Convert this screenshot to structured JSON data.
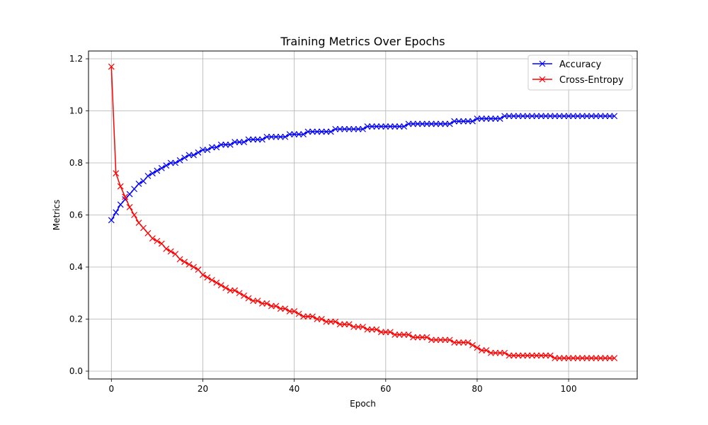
{
  "chart_data": {
    "type": "line",
    "title": "Training Metrics Over Epochs",
    "xlabel": "Epoch",
    "ylabel": "Metrics",
    "xlim": [
      -5,
      115
    ],
    "ylim": [
      -0.03,
      1.23
    ],
    "xticks": [
      0,
      20,
      40,
      60,
      80,
      100
    ],
    "yticks": [
      0.0,
      0.2,
      0.4,
      0.6,
      0.8,
      1.0,
      1.2
    ],
    "xtick_labels": [
      "0",
      "20",
      "40",
      "60",
      "80",
      "100"
    ],
    "ytick_labels": [
      "0.0",
      "0.2",
      "0.4",
      "0.6",
      "0.8",
      "1.0",
      "1.2"
    ],
    "grid": true,
    "legend_position": "top-right",
    "marker": "x",
    "x": [
      0,
      1,
      2,
      3,
      4,
      5,
      6,
      7,
      8,
      9,
      10,
      11,
      12,
      13,
      14,
      15,
      16,
      17,
      18,
      19,
      20,
      21,
      22,
      23,
      24,
      25,
      26,
      27,
      28,
      29,
      30,
      31,
      32,
      33,
      34,
      35,
      36,
      37,
      38,
      39,
      40,
      41,
      42,
      43,
      44,
      45,
      46,
      47,
      48,
      49,
      50,
      51,
      52,
      53,
      54,
      55,
      56,
      57,
      58,
      59,
      60,
      61,
      62,
      63,
      64,
      65,
      66,
      67,
      68,
      69,
      70,
      71,
      72,
      73,
      74,
      75,
      76,
      77,
      78,
      79,
      80,
      81,
      82,
      83,
      84,
      85,
      86,
      87,
      88,
      89,
      90,
      91,
      92,
      93,
      94,
      95,
      96,
      97,
      98,
      99,
      100,
      101,
      102,
      103,
      104,
      105,
      106,
      107,
      108,
      109,
      110
    ],
    "series": [
      {
        "name": "Accuracy",
        "color": "#0000ff",
        "values": [
          0.58,
          0.61,
          0.64,
          0.66,
          0.68,
          0.7,
          0.72,
          0.73,
          0.75,
          0.76,
          0.77,
          0.78,
          0.79,
          0.8,
          0.8,
          0.81,
          0.82,
          0.83,
          0.83,
          0.84,
          0.85,
          0.85,
          0.86,
          0.86,
          0.87,
          0.87,
          0.87,
          0.88,
          0.88,
          0.88,
          0.89,
          0.89,
          0.89,
          0.89,
          0.9,
          0.9,
          0.9,
          0.9,
          0.9,
          0.91,
          0.91,
          0.91,
          0.91,
          0.92,
          0.92,
          0.92,
          0.92,
          0.92,
          0.92,
          0.93,
          0.93,
          0.93,
          0.93,
          0.93,
          0.93,
          0.93,
          0.94,
          0.94,
          0.94,
          0.94,
          0.94,
          0.94,
          0.94,
          0.94,
          0.94,
          0.95,
          0.95,
          0.95,
          0.95,
          0.95,
          0.95,
          0.95,
          0.95,
          0.95,
          0.95,
          0.96,
          0.96,
          0.96,
          0.96,
          0.96,
          0.97,
          0.97,
          0.97,
          0.97,
          0.97,
          0.97,
          0.98,
          0.98,
          0.98,
          0.98,
          0.98,
          0.98,
          0.98,
          0.98,
          0.98,
          0.98,
          0.98,
          0.98,
          0.98,
          0.98,
          0.98,
          0.98,
          0.98,
          0.98,
          0.98,
          0.98,
          0.98,
          0.98,
          0.98,
          0.98,
          0.98
        ]
      },
      {
        "name": "Cross-Entropy",
        "color": "#ff0000",
        "values": [
          1.17,
          0.76,
          0.71,
          0.67,
          0.63,
          0.6,
          0.57,
          0.55,
          0.53,
          0.51,
          0.5,
          0.49,
          0.47,
          0.46,
          0.45,
          0.43,
          0.42,
          0.41,
          0.4,
          0.39,
          0.37,
          0.36,
          0.35,
          0.34,
          0.33,
          0.32,
          0.31,
          0.31,
          0.3,
          0.29,
          0.28,
          0.27,
          0.27,
          0.26,
          0.26,
          0.25,
          0.25,
          0.24,
          0.24,
          0.23,
          0.23,
          0.22,
          0.21,
          0.21,
          0.21,
          0.2,
          0.2,
          0.19,
          0.19,
          0.19,
          0.18,
          0.18,
          0.18,
          0.17,
          0.17,
          0.17,
          0.16,
          0.16,
          0.16,
          0.15,
          0.15,
          0.15,
          0.14,
          0.14,
          0.14,
          0.14,
          0.13,
          0.13,
          0.13,
          0.13,
          0.12,
          0.12,
          0.12,
          0.12,
          0.12,
          0.11,
          0.11,
          0.11,
          0.11,
          0.1,
          0.09,
          0.08,
          0.08,
          0.07,
          0.07,
          0.07,
          0.07,
          0.06,
          0.06,
          0.06,
          0.06,
          0.06,
          0.06,
          0.06,
          0.06,
          0.06,
          0.06,
          0.05,
          0.05,
          0.05,
          0.05,
          0.05,
          0.05,
          0.05,
          0.05,
          0.05,
          0.05,
          0.05,
          0.05,
          0.05,
          0.05
        ]
      }
    ]
  }
}
